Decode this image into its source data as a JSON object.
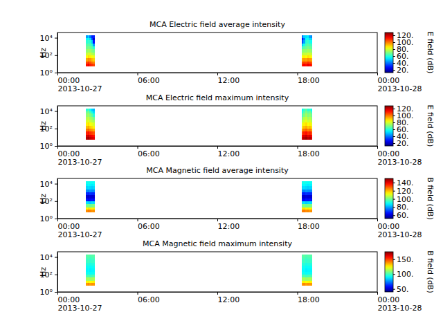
{
  "chart_data": [
    {
      "type": "heatmap",
      "title": "MCA  Electric field average intensity",
      "y_label": "Hz",
      "log": "y",
      "xlim": [
        "2013-10-27T00:00",
        "2013-10-28T00:00"
      ],
      "xticks": [
        {
          "value": "2013-10-27T00:00",
          "label": "00:00\n2013-10-27"
        },
        {
          "value": "2013-10-27T06:00",
          "label": "06:00"
        },
        {
          "value": "2013-10-27T12:00",
          "label": "12:00"
        },
        {
          "value": "2013-10-27T18:00",
          "label": "18:00"
        },
        {
          "value": "2013-10-28T00:00",
          "label": "00:00\n2013-10-28"
        }
      ],
      "ylim": [
        1,
        40000
      ],
      "yticks": [
        {
          "value": 1,
          "label": "10⁰"
        },
        {
          "value": 100,
          "label": "10²"
        },
        {
          "value": 10000,
          "label": "10⁴"
        }
      ],
      "x_bins": [
        [
          "2013-10-27T02:08",
          "2013-10-27T02:16"
        ],
        [
          "2013-10-27T02:16",
          "2013-10-27T02:24"
        ],
        [
          "2013-10-27T02:24",
          "2013-10-27T02:32"
        ],
        [
          "2013-10-27T02:32",
          "2013-10-27T02:40"
        ],
        [
          "2013-10-27T02:40",
          "2013-10-27T02:48"
        ],
        [
          "2013-10-27T18:20",
          "2013-10-27T18:28"
        ],
        [
          "2013-10-27T18:28",
          "2013-10-27T18:36"
        ],
        [
          "2013-10-27T18:36",
          "2013-10-27T18:44"
        ],
        [
          "2013-10-27T18:44",
          "2013-10-27T18:52"
        ],
        [
          "2013-10-27T18:52",
          "2013-10-27T19:00"
        ],
        [
          "2013-10-27T19:00",
          "2013-10-27T19:08"
        ]
      ],
      "y_bins": [
        5,
        10,
        20,
        50,
        100,
        200,
        500,
        1000,
        2000,
        5000,
        10000,
        20000
      ],
      "z": [
        [
          112,
          105,
          95,
          85,
          78,
          72,
          68,
          65,
          60,
          55,
          45
        ],
        [
          115,
          108,
          98,
          88,
          80,
          74,
          70,
          66,
          62,
          58,
          50
        ],
        [
          110,
          104,
          96,
          86,
          79,
          73,
          68,
          64,
          60,
          52,
          40
        ],
        [
          108,
          100,
          92,
          84,
          76,
          70,
          66,
          60,
          50,
          35,
          30
        ],
        [
          106,
          98,
          90,
          82,
          74,
          68,
          60,
          45,
          28,
          22,
          30
        ],
        [
          110,
          104,
          94,
          84,
          76,
          70,
          62,
          50,
          35,
          28,
          40
        ],
        [
          114,
          106,
          96,
          86,
          78,
          72,
          66,
          58,
          45,
          40,
          50
        ],
        [
          112,
          105,
          95,
          85,
          78,
          72,
          68,
          64,
          60,
          56,
          52
        ],
        [
          116,
          108,
          98,
          88,
          80,
          74,
          70,
          66,
          62,
          58,
          54
        ],
        [
          113,
          106,
          96,
          86,
          79,
          73,
          68,
          64,
          58,
          52,
          45
        ],
        [
          110,
          103,
          94,
          84,
          77,
          71,
          66,
          62,
          56,
          50,
          42
        ]
      ],
      "colorbar": {
        "label": "E field (dB)",
        "range": [
          12,
          128
        ],
        "ticks": [
          {
            "value": 20,
            "label": "20."
          },
          {
            "value": 40,
            "label": "40."
          },
          {
            "value": 60,
            "label": "60."
          },
          {
            "value": 80,
            "label": "80."
          },
          {
            "value": 100,
            "label": "100."
          },
          {
            "value": 120,
            "label": "120."
          }
        ]
      }
    },
    {
      "type": "heatmap",
      "title": "MCA  Electric field maximum intensity",
      "y_label": "Hz",
      "log": "y",
      "xlim": [
        "2013-10-27T00:00",
        "2013-10-28T00:00"
      ],
      "xticks": [
        {
          "value": "2013-10-27T00:00",
          "label": "00:00\n2013-10-27"
        },
        {
          "value": "2013-10-27T06:00",
          "label": "06:00"
        },
        {
          "value": "2013-10-27T12:00",
          "label": "12:00"
        },
        {
          "value": "2013-10-27T18:00",
          "label": "18:00"
        },
        {
          "value": "2013-10-28T00:00",
          "label": "00:00\n2013-10-28"
        }
      ],
      "ylim": [
        1,
        40000
      ],
      "yticks": [
        {
          "value": 1,
          "label": "10⁰"
        },
        {
          "value": 100,
          "label": "10²"
        },
        {
          "value": 10000,
          "label": "10⁴"
        }
      ],
      "x_bins": [
        [
          "2013-10-27T02:08",
          "2013-10-27T02:16"
        ],
        [
          "2013-10-27T02:16",
          "2013-10-27T02:24"
        ],
        [
          "2013-10-27T02:24",
          "2013-10-27T02:32"
        ],
        [
          "2013-10-27T02:32",
          "2013-10-27T02:40"
        ],
        [
          "2013-10-27T02:40",
          "2013-10-27T02:48"
        ],
        [
          "2013-10-27T18:20",
          "2013-10-27T18:28"
        ],
        [
          "2013-10-27T18:28",
          "2013-10-27T18:36"
        ],
        [
          "2013-10-27T18:36",
          "2013-10-27T18:44"
        ],
        [
          "2013-10-27T18:44",
          "2013-10-27T18:52"
        ],
        [
          "2013-10-27T18:52",
          "2013-10-27T19:00"
        ],
        [
          "2013-10-27T19:00",
          "2013-10-27T19:08"
        ]
      ],
      "y_bins": [
        5,
        10,
        20,
        50,
        100,
        200,
        500,
        1000,
        2000,
        5000,
        10000,
        20000
      ],
      "z": [
        [
          122,
          118,
          110,
          100,
          92,
          86,
          80,
          76,
          72,
          68,
          60
        ],
        [
          124,
          120,
          112,
          102,
          94,
          88,
          82,
          78,
          74,
          70,
          64
        ],
        [
          120,
          116,
          108,
          98,
          90,
          84,
          78,
          74,
          70,
          64,
          56
        ],
        [
          118,
          114,
          106,
          96,
          88,
          82,
          76,
          72,
          66,
          58,
          50
        ],
        [
          116,
          112,
          104,
          94,
          86,
          80,
          74,
          68,
          60,
          52,
          48
        ],
        [
          118,
          114,
          106,
          96,
          88,
          82,
          76,
          70,
          64,
          58,
          56
        ],
        [
          122,
          118,
          110,
          100,
          92,
          86,
          80,
          76,
          70,
          66,
          62
        ],
        [
          124,
          120,
          112,
          102,
          94,
          88,
          82,
          78,
          74,
          70,
          66
        ],
        [
          120,
          116,
          108,
          98,
          90,
          84,
          78,
          74,
          70,
          66,
          60
        ],
        [
          122,
          118,
          110,
          100,
          92,
          86,
          80,
          76,
          72,
          68,
          62
        ],
        [
          118,
          114,
          106,
          96,
          88,
          82,
          76,
          72,
          68,
          62,
          56
        ]
      ],
      "colorbar": {
        "label": "E field (dB)",
        "range": [
          12,
          128
        ],
        "ticks": [
          {
            "value": 20,
            "label": "20."
          },
          {
            "value": 40,
            "label": "40."
          },
          {
            "value": 60,
            "label": "60."
          },
          {
            "value": 80,
            "label": "80."
          },
          {
            "value": 100,
            "label": "100."
          },
          {
            "value": 120,
            "label": "120."
          }
        ]
      }
    },
    {
      "type": "heatmap",
      "title": "MCA  Magnetic field average intensity",
      "y_label": "Hz",
      "log": "y",
      "xlim": [
        "2013-10-27T00:00",
        "2013-10-28T00:00"
      ],
      "xticks": [
        {
          "value": "2013-10-27T00:00",
          "label": "00:00\n2013-10-27"
        },
        {
          "value": "2013-10-27T06:00",
          "label": "06:00"
        },
        {
          "value": "2013-10-27T12:00",
          "label": "12:00"
        },
        {
          "value": "2013-10-27T18:00",
          "label": "18:00"
        },
        {
          "value": "2013-10-28T00:00",
          "label": "00:00\n2013-10-28"
        }
      ],
      "ylim": [
        1,
        40000
      ],
      "yticks": [
        {
          "value": 1,
          "label": "10⁰"
        },
        {
          "value": 100,
          "label": "10²"
        },
        {
          "value": 10000,
          "label": "10⁴"
        }
      ],
      "x_bins": [
        [
          "2013-10-27T02:08",
          "2013-10-27T02:16"
        ],
        [
          "2013-10-27T02:16",
          "2013-10-27T02:24"
        ],
        [
          "2013-10-27T02:24",
          "2013-10-27T02:32"
        ],
        [
          "2013-10-27T02:32",
          "2013-10-27T02:40"
        ],
        [
          "2013-10-27T02:40",
          "2013-10-27T02:48"
        ],
        [
          "2013-10-27T18:20",
          "2013-10-27T18:28"
        ],
        [
          "2013-10-27T18:28",
          "2013-10-27T18:36"
        ],
        [
          "2013-10-27T18:36",
          "2013-10-27T18:44"
        ],
        [
          "2013-10-27T18:44",
          "2013-10-27T18:52"
        ],
        [
          "2013-10-27T18:52",
          "2013-10-27T19:00"
        ],
        [
          "2013-10-27T19:00",
          "2013-10-27T19:08"
        ]
      ],
      "y_bins": [
        5,
        10,
        20,
        50,
        100,
        200,
        500,
        1000,
        2000,
        5000,
        10000,
        20000
      ],
      "z": [
        [
          124,
          114,
          100,
          86,
          66,
          60,
          68,
          78,
          85,
          88,
          90
        ],
        [
          126,
          116,
          101,
          85,
          64,
          59,
          67,
          77,
          86,
          89,
          91
        ],
        [
          125,
          115,
          99,
          84,
          65,
          61,
          69,
          79,
          85,
          88,
          90
        ],
        [
          123,
          114,
          100,
          86,
          66,
          60,
          68,
          78,
          84,
          87,
          89
        ],
        [
          124,
          115,
          101,
          85,
          65,
          60,
          68,
          78,
          85,
          88,
          90
        ],
        [
          125,
          115,
          100,
          85,
          65,
          60,
          68,
          78,
          85,
          88,
          90
        ],
        [
          126,
          116,
          101,
          86,
          64,
          59,
          67,
          77,
          86,
          89,
          91
        ],
        [
          124,
          114,
          99,
          84,
          66,
          61,
          69,
          79,
          85,
          88,
          90
        ],
        [
          125,
          115,
          100,
          85,
          65,
          60,
          68,
          78,
          84,
          87,
          89
        ],
        [
          123,
          114,
          100,
          86,
          66,
          60,
          68,
          78,
          85,
          88,
          90
        ],
        [
          124,
          115,
          101,
          85,
          65,
          60,
          68,
          78,
          85,
          88,
          90
        ]
      ],
      "colorbar": {
        "label": "B field (dB)",
        "range": [
          52,
          150
        ],
        "ticks": [
          {
            "value": 60,
            "label": "60."
          },
          {
            "value": 80,
            "label": "80."
          },
          {
            "value": 100,
            "label": "100."
          },
          {
            "value": 120,
            "label": "120."
          },
          {
            "value": 140,
            "label": "140."
          }
        ]
      }
    },
    {
      "type": "heatmap",
      "title": "MCA  Magnetic field maximum intensity",
      "y_label": "Hz",
      "log": "y",
      "xlim": [
        "2013-10-27T00:00",
        "2013-10-28T00:00"
      ],
      "xticks": [
        {
          "value": "2013-10-27T00:00",
          "label": "00:00\n2013-10-27"
        },
        {
          "value": "2013-10-27T06:00",
          "label": "06:00"
        },
        {
          "value": "2013-10-27T12:00",
          "label": "12:00"
        },
        {
          "value": "2013-10-27T18:00",
          "label": "18:00"
        },
        {
          "value": "2013-10-28T00:00",
          "label": "00:00\n2013-10-28"
        }
      ],
      "ylim": [
        1,
        40000
      ],
      "yticks": [
        {
          "value": 1,
          "label": "10⁰"
        },
        {
          "value": 100,
          "label": "10²"
        },
        {
          "value": 10000,
          "label": "10⁴"
        }
      ],
      "x_bins": [
        [
          "2013-10-27T02:08",
          "2013-10-27T02:16"
        ],
        [
          "2013-10-27T02:16",
          "2013-10-27T02:24"
        ],
        [
          "2013-10-27T02:24",
          "2013-10-27T02:32"
        ],
        [
          "2013-10-27T02:32",
          "2013-10-27T02:40"
        ],
        [
          "2013-10-27T02:40",
          "2013-10-27T02:48"
        ],
        [
          "2013-10-27T18:20",
          "2013-10-27T18:28"
        ],
        [
          "2013-10-27T18:28",
          "2013-10-27T18:36"
        ],
        [
          "2013-10-27T18:36",
          "2013-10-27T18:44"
        ],
        [
          "2013-10-27T18:44",
          "2013-10-27T18:52"
        ],
        [
          "2013-10-27T18:52",
          "2013-10-27T19:00"
        ],
        [
          "2013-10-27T19:00",
          "2013-10-27T19:08"
        ]
      ],
      "y_bins": [
        5,
        10,
        20,
        50,
        100,
        200,
        500,
        1000,
        2000,
        5000,
        10000,
        20000
      ],
      "z": [
        [
          138,
          125,
          112,
          100,
          92,
          90,
          92,
          95,
          98,
          100,
          102
        ],
        [
          140,
          126,
          113,
          101,
          93,
          91,
          93,
          96,
          99,
          101,
          103
        ],
        [
          137,
          124,
          111,
          99,
          91,
          89,
          91,
          94,
          97,
          99,
          101
        ],
        [
          139,
          125,
          112,
          100,
          92,
          90,
          92,
          95,
          98,
          100,
          102
        ],
        [
          138,
          126,
          113,
          101,
          92,
          90,
          92,
          95,
          98,
          100,
          102
        ],
        [
          138,
          125,
          112,
          100,
          92,
          90,
          92,
          95,
          98,
          100,
          102
        ],
        [
          140,
          126,
          113,
          101,
          93,
          91,
          93,
          96,
          99,
          101,
          103
        ],
        [
          137,
          124,
          111,
          99,
          91,
          89,
          91,
          94,
          97,
          99,
          101
        ],
        [
          139,
          125,
          112,
          100,
          92,
          90,
          92,
          95,
          98,
          100,
          102
        ],
        [
          138,
          126,
          113,
          101,
          92,
          90,
          92,
          95,
          98,
          100,
          102
        ],
        [
          138,
          125,
          112,
          100,
          92,
          90,
          92,
          95,
          98,
          100,
          102
        ]
      ],
      "colorbar": {
        "label": "B field (dB)",
        "range": [
          40,
          175
        ],
        "ticks": [
          {
            "value": 50,
            "label": "50."
          },
          {
            "value": 100,
            "label": "100."
          },
          {
            "value": 150,
            "label": "150."
          }
        ]
      }
    }
  ]
}
